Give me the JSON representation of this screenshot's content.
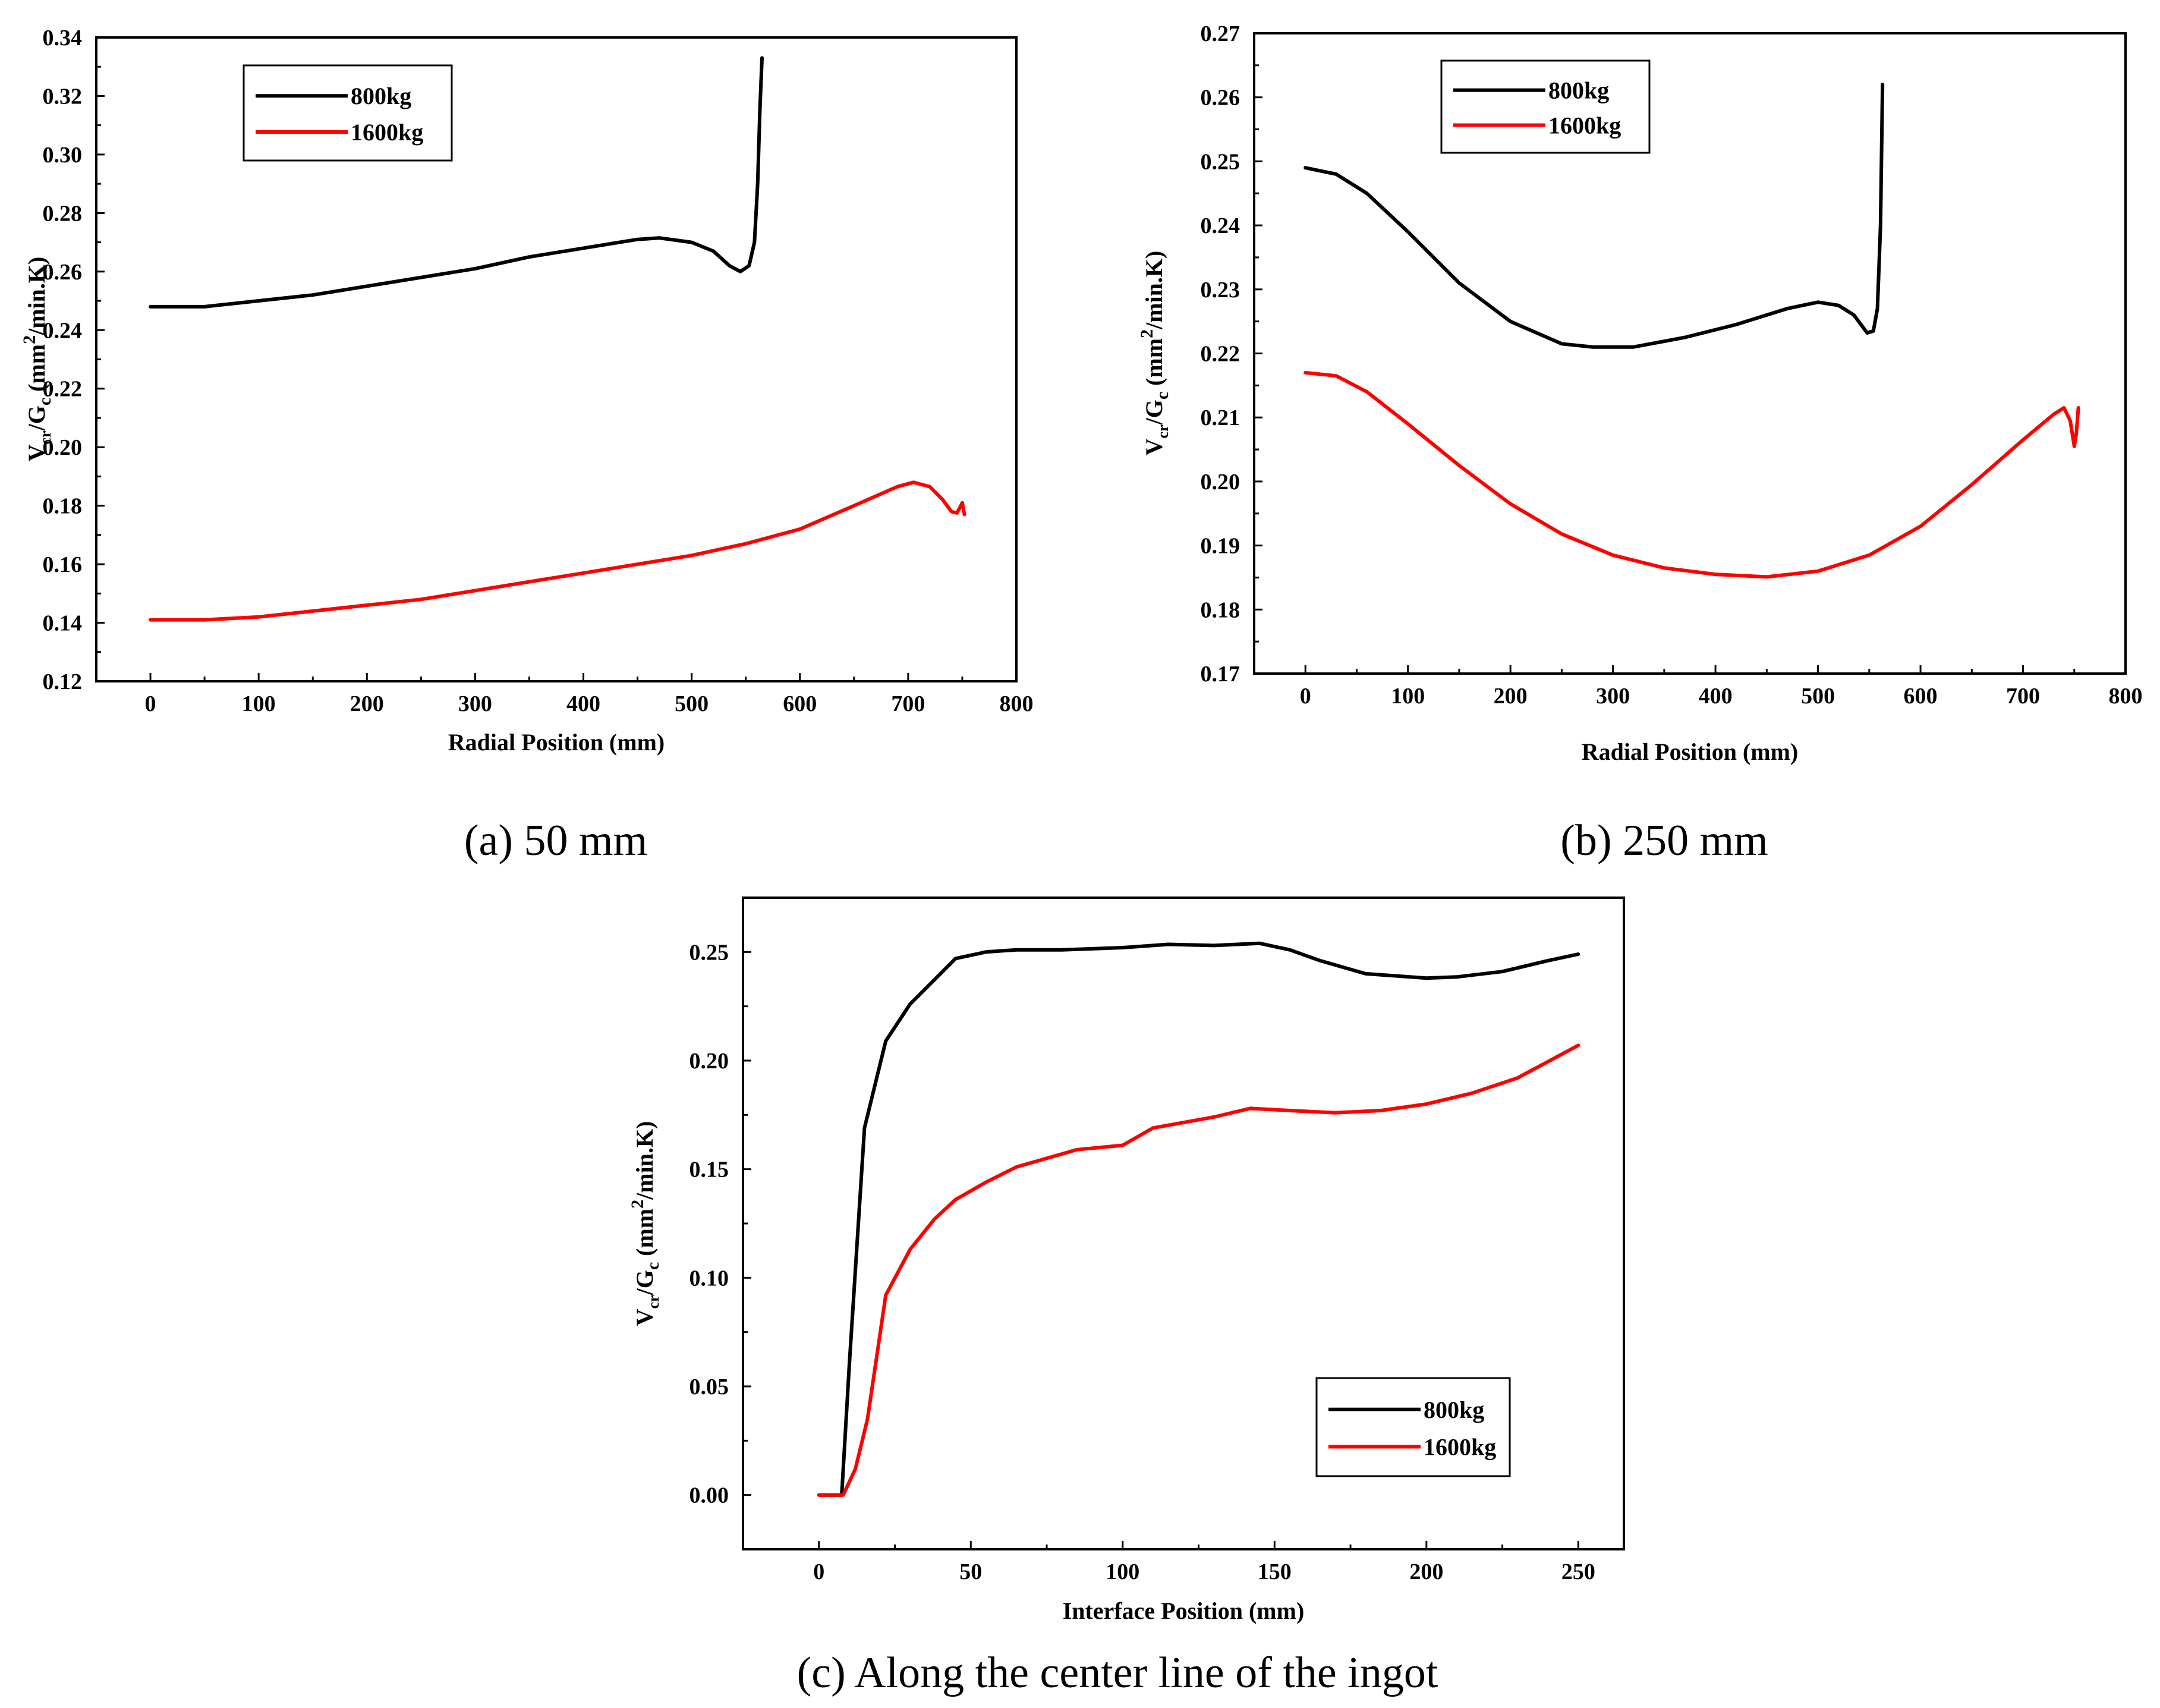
{
  "chart_data": [
    {
      "type": "line",
      "caption": "(a) 50 mm",
      "xlabel": "Radial Position (mm)",
      "ylabel": {
        "main": "V",
        "sub1": "cr",
        "mid": "/G",
        "sub2": "c",
        "unit_open": " (mm",
        "sup": "2",
        "unit_close": "/min.K)"
      },
      "xlim": [
        -50,
        800
      ],
      "ylim": [
        0.12,
        0.34
      ],
      "xticks": [
        0,
        100,
        200,
        300,
        400,
        500,
        600,
        700,
        800
      ],
      "yticks": [
        0.12,
        0.14,
        0.16,
        0.18,
        0.2,
        0.22,
        0.24,
        0.26,
        0.28,
        0.3,
        0.32,
        0.34
      ],
      "ytick_decimals": 2,
      "legend_position": "top-left",
      "series": [
        {
          "name": "800kg",
          "color": "#000000",
          "points": [
            [
              0,
              0.248
            ],
            [
              50,
              0.248
            ],
            [
              100,
              0.25
            ],
            [
              150,
              0.252
            ],
            [
              200,
              0.255
            ],
            [
              250,
              0.258
            ],
            [
              300,
              0.261
            ],
            [
              350,
              0.265
            ],
            [
              400,
              0.268
            ],
            [
              450,
              0.271
            ],
            [
              470,
              0.2715
            ],
            [
              500,
              0.27
            ],
            [
              520,
              0.267
            ],
            [
              535,
              0.262
            ],
            [
              545,
              0.26
            ],
            [
              553,
              0.262
            ],
            [
              558,
              0.27
            ],
            [
              561,
              0.29
            ],
            [
              563,
              0.315
            ],
            [
              565,
              0.333
            ]
          ]
        },
        {
          "name": "1600kg",
          "color": "#ff0000",
          "points": [
            [
              0,
              0.141
            ],
            [
              50,
              0.141
            ],
            [
              100,
              0.142
            ],
            [
              150,
              0.144
            ],
            [
              200,
              0.146
            ],
            [
              250,
              0.148
            ],
            [
              300,
              0.151
            ],
            [
              350,
              0.154
            ],
            [
              400,
              0.157
            ],
            [
              450,
              0.16
            ],
            [
              500,
              0.163
            ],
            [
              550,
              0.167
            ],
            [
              600,
              0.172
            ],
            [
              650,
              0.18
            ],
            [
              690,
              0.1865
            ],
            [
              705,
              0.188
            ],
            [
              720,
              0.1865
            ],
            [
              732,
              0.182
            ],
            [
              740,
              0.178
            ],
            [
              745,
              0.1775
            ],
            [
              748,
              0.1795
            ],
            [
              750,
              0.181
            ],
            [
              752,
              0.177
            ]
          ]
        }
      ]
    },
    {
      "type": "line",
      "caption": "(b) 250 mm",
      "xlabel": "Radial Position (mm)",
      "ylabel": {
        "main": "V",
        "sub1": "cr",
        "mid": "/G",
        "sub2": "c",
        "unit_open": " (mm",
        "sup": "2",
        "unit_close": "/min.K)"
      },
      "xlim": [
        -50,
        800
      ],
      "ylim": [
        0.17,
        0.27
      ],
      "xticks": [
        0,
        100,
        200,
        300,
        400,
        500,
        600,
        700,
        800
      ],
      "yticks": [
        0.17,
        0.18,
        0.19,
        0.2,
        0.21,
        0.22,
        0.23,
        0.24,
        0.25,
        0.26,
        0.27
      ],
      "ytick_decimals": 2,
      "legend_position": "top-left",
      "series": [
        {
          "name": "800kg",
          "color": "#000000",
          "points": [
            [
              0,
              0.249
            ],
            [
              30,
              0.248
            ],
            [
              60,
              0.245
            ],
            [
              100,
              0.239
            ],
            [
              150,
              0.231
            ],
            [
              200,
              0.225
            ],
            [
              250,
              0.2215
            ],
            [
              280,
              0.221
            ],
            [
              320,
              0.221
            ],
            [
              370,
              0.2225
            ],
            [
              420,
              0.2245
            ],
            [
              470,
              0.227
            ],
            [
              500,
              0.228
            ],
            [
              520,
              0.2275
            ],
            [
              535,
              0.226
            ],
            [
              548,
              0.2232
            ],
            [
              554,
              0.2235
            ],
            [
              558,
              0.227
            ],
            [
              561,
              0.24
            ],
            [
              563,
              0.262
            ]
          ]
        },
        {
          "name": "1600kg",
          "color": "#ff0000",
          "points": [
            [
              0,
              0.217
            ],
            [
              30,
              0.2165
            ],
            [
              60,
              0.214
            ],
            [
              100,
              0.209
            ],
            [
              150,
              0.2025
            ],
            [
              200,
              0.1965
            ],
            [
              250,
              0.1918
            ],
            [
              300,
              0.1885
            ],
            [
              350,
              0.1865
            ],
            [
              400,
              0.1855
            ],
            [
              450,
              0.1851
            ],
            [
              500,
              0.186
            ],
            [
              550,
              0.1885
            ],
            [
              600,
              0.193
            ],
            [
              650,
              0.1995
            ],
            [
              700,
              0.2065
            ],
            [
              730,
              0.2105
            ],
            [
              740,
              0.2115
            ],
            [
              746,
              0.2095
            ],
            [
              750,
              0.2055
            ],
            [
              752,
              0.2075
            ],
            [
              754,
              0.2115
            ]
          ]
        }
      ]
    },
    {
      "type": "line",
      "caption": "(c)   Along the center line of the ingot",
      "xlabel": "Interface Position (mm)",
      "ylabel": {
        "main": "V",
        "sub1": "cr",
        "mid": "/G",
        "sub2": "c",
        "unit_open": " (mm",
        "sup": "2",
        "unit_close": "/min.K)"
      },
      "xlim": [
        -25,
        265
      ],
      "ylim": [
        -0.025,
        0.275
      ],
      "xticks": [
        0,
        50,
        100,
        150,
        200,
        250
      ],
      "yticks": [
        0.0,
        0.05,
        0.1,
        0.15,
        0.2,
        0.25
      ],
      "ytick_decimals": 2,
      "legend_position": "bottom-right",
      "series": [
        {
          "name": "800kg",
          "color": "#000000",
          "points": [
            [
              0,
              0
            ],
            [
              7.5,
              0
            ],
            [
              10,
              0.06
            ],
            [
              15,
              0.169
            ],
            [
              22,
              0.209
            ],
            [
              30,
              0.226
            ],
            [
              40,
              0.24
            ],
            [
              45,
              0.247
            ],
            [
              55,
              0.25
            ],
            [
              65,
              0.251
            ],
            [
              80,
              0.251
            ],
            [
              100,
              0.252
            ],
            [
              115,
              0.2535
            ],
            [
              130,
              0.253
            ],
            [
              145,
              0.254
            ],
            [
              155,
              0.251
            ],
            [
              165,
              0.246
            ],
            [
              180,
              0.24
            ],
            [
              200,
              0.238
            ],
            [
              210,
              0.2385
            ],
            [
              225,
              0.241
            ],
            [
              240,
              0.246
            ],
            [
              250,
              0.249
            ]
          ]
        },
        {
          "name": "1600kg",
          "color": "#ff0000",
          "points": [
            [
              0,
              0
            ],
            [
              8,
              0
            ],
            [
              12,
              0.012
            ],
            [
              16,
              0.035
            ],
            [
              22,
              0.092
            ],
            [
              30,
              0.113
            ],
            [
              38,
              0.127
            ],
            [
              45,
              0.136
            ],
            [
              55,
              0.144
            ],
            [
              65,
              0.151
            ],
            [
              75,
              0.155
            ],
            [
              85,
              0.159
            ],
            [
              100,
              0.161
            ],
            [
              110,
              0.169
            ],
            [
              130,
              0.174
            ],
            [
              142,
              0.178
            ],
            [
              155,
              0.177
            ],
            [
              170,
              0.176
            ],
            [
              185,
              0.177
            ],
            [
              200,
              0.18
            ],
            [
              215,
              0.185
            ],
            [
              230,
              0.192
            ],
            [
              250,
              0.207
            ]
          ]
        }
      ]
    }
  ]
}
